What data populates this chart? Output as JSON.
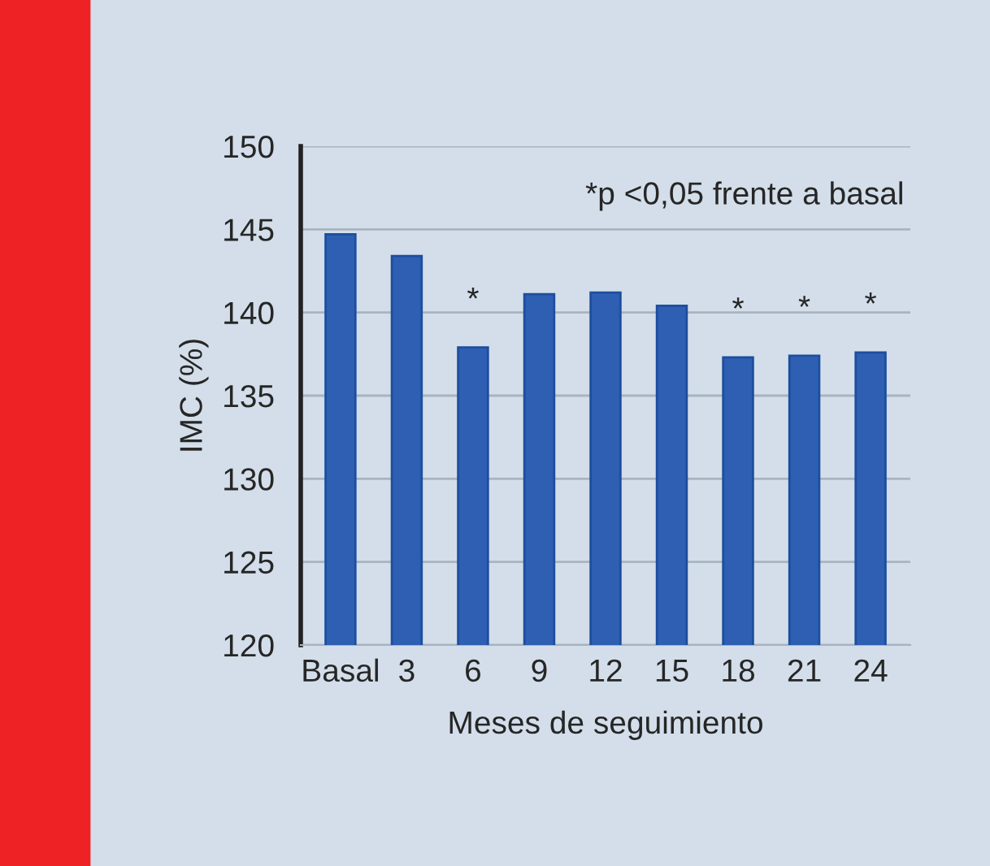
{
  "chart_data": {
    "type": "bar",
    "xlabel": "Meses de seguimiento",
    "ylabel": "IMC (%)",
    "categories": [
      "Basal",
      "3",
      "6",
      "9",
      "12",
      "15",
      "18",
      "21",
      "24"
    ],
    "values": [
      144.7,
      143.4,
      137.9,
      141.1,
      141.2,
      140.4,
      137.3,
      137.4,
      137.6
    ],
    "color": "#2e5fb3",
    "ylim": [
      120,
      150
    ],
    "yticks": [
      120,
      125,
      130,
      135,
      140,
      145,
      150
    ],
    "grid": "y",
    "annotations": [
      "*p <0,05 frente a basal",
      {
        "text": "*",
        "x": "6",
        "y": 137.9
      },
      {
        "text": "*",
        "x": "18",
        "y": 137.3
      },
      {
        "text": "*",
        "x": "21",
        "y": 137.4
      },
      {
        "text": "*",
        "x": "24",
        "y": 137.6
      }
    ]
  }
}
